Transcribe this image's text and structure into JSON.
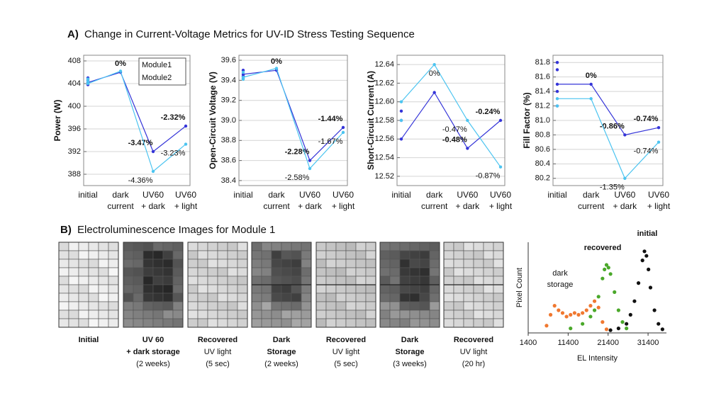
{
  "section_a": {
    "label": "A)",
    "title": "Change in Current-Voltage Metrics for UV-ID Stress Testing Sequence"
  },
  "section_b": {
    "label": "B)",
    "title": "Electroluminescence Images for Module 1"
  },
  "images": [
    {
      "title": [
        "Initial"
      ],
      "detail": []
    },
    {
      "title": [
        "UV 60",
        "+ dark storage"
      ],
      "detail": [
        "(2 weeks)"
      ]
    },
    {
      "title": [
        "Recovered"
      ],
      "detail": [
        "UV light",
        "(5 sec)"
      ]
    },
    {
      "title": [
        "Dark",
        "Storage"
      ],
      "detail": [
        "(2 weeks)"
      ]
    },
    {
      "title": [
        "Recovered"
      ],
      "detail": [
        "UV light",
        "(5 sec)"
      ]
    },
    {
      "title": [
        "Dark",
        "Storage"
      ],
      "detail": [
        "(3 weeks)"
      ]
    },
    {
      "title": [
        "Recovered"
      ],
      "detail": [
        "UV light",
        "(20 hr)"
      ]
    }
  ],
  "chart_data": [
    {
      "type": "line",
      "y_label": "Power (W)",
      "legend": true,
      "grid": true,
      "categories": [
        [
          "initial"
        ],
        [
          "dark",
          "current"
        ],
        [
          "UV60",
          "+ dark"
        ],
        [
          "UV60",
          "+ light"
        ]
      ],
      "ylim": [
        386,
        409
      ],
      "yticks": [
        388,
        392,
        396,
        400,
        404,
        408
      ],
      "series": [
        {
          "name": "Module1",
          "color": "#3434d8",
          "values": [
            404.2,
            406,
            392,
            396.5
          ],
          "initial_values": [
            405,
            404.6,
            403.8
          ],
          "change_labels": [
            null,
            "0%",
            "-3.47%",
            "-2.32%"
          ]
        },
        {
          "name": "Module2",
          "color": "#4cc4f0",
          "values": [
            404.0,
            406.2,
            388.5,
            393.3
          ],
          "initial_values": [
            404.8,
            404.4
          ],
          "change_labels": [
            null,
            null,
            "-4.36%",
            "-3.23%"
          ]
        }
      ]
    },
    {
      "type": "line",
      "y_label": "Open-Circuit Voltage (V)",
      "legend": false,
      "grid": true,
      "categories": [
        [
          "initial"
        ],
        [
          "dark",
          "current"
        ],
        [
          "UV60",
          "+ dark"
        ],
        [
          "UV60",
          "+ light"
        ]
      ],
      "ylim": [
        38.35,
        39.65
      ],
      "yticks": [
        38.4,
        38.6,
        38.8,
        {
          "value": 39,
          "label": "39.0"
        },
        39.2,
        39.4,
        39.6
      ],
      "series": [
        {
          "name": "Module1",
          "color": "#3434d8",
          "values": [
            39.46,
            39.5,
            38.6,
            38.93
          ],
          "initial_values": [
            39.5,
            39.44,
            39.42
          ],
          "change_labels": [
            null,
            "0%",
            "-2.28%",
            "-1.44%"
          ]
        },
        {
          "name": "Module2",
          "color": "#4cc4f0",
          "values": [
            39.43,
            39.52,
            38.52,
            38.88
          ],
          "initial_values": [
            39.48,
            39.41
          ],
          "change_labels": [
            null,
            null,
            "-2.58%",
            "-1.67%"
          ]
        }
      ]
    },
    {
      "type": "line",
      "y_label": "Short-Circuit Current (A)",
      "legend": false,
      "grid": true,
      "categories": [
        [
          "initial"
        ],
        [
          "dark",
          "current"
        ],
        [
          "UV60",
          "+ dark"
        ],
        [
          "UV60",
          "+ light"
        ]
      ],
      "ylim": [
        12.51,
        12.65
      ],
      "yticks": [
        12.52,
        12.54,
        12.56,
        12.58,
        {
          "value": 12.6,
          "label": "12.60"
        },
        12.62,
        12.64
      ],
      "series": [
        {
          "name": "Module1",
          "color": "#3434d8",
          "values": [
            12.56,
            12.61,
            12.55,
            12.58
          ],
          "initial_values": [
            12.59,
            12.58
          ],
          "change_labels": [
            null,
            null,
            "-0.48%",
            "-0.24%"
          ]
        },
        {
          "name": "Module2",
          "color": "#4cc4f0",
          "values": [
            12.6,
            12.64,
            12.58,
            12.53
          ],
          "initial_values": [
            12.58
          ],
          "change_labels": [
            null,
            "0%",
            "-0.47%",
            "-0.87%"
          ]
        }
      ]
    },
    {
      "type": "line",
      "y_label": "Fill Factor (%)",
      "legend": false,
      "grid": true,
      "categories": [
        [
          "initial"
        ],
        [
          "dark",
          "current"
        ],
        [
          "UV60",
          "+ dark"
        ],
        [
          "UV60",
          "+ light"
        ]
      ],
      "ylim": [
        80.1,
        81.9
      ],
      "yticks": [
        80.2,
        80.4,
        80.6,
        80.8,
        {
          "value": 81,
          "label": "81.0"
        },
        81.2,
        81.4,
        81.6,
        81.8
      ],
      "series": [
        {
          "name": "Module1",
          "color": "#3434d8",
          "values": [
            81.5,
            81.5,
            80.8,
            80.9
          ],
          "initial_values": [
            81.8,
            81.7,
            81.4,
            81.2
          ],
          "change_labels": [
            null,
            "0%",
            "-0.86%",
            "-0.74%"
          ]
        },
        {
          "name": "Module2",
          "color": "#4cc4f0",
          "values": [
            81.3,
            81.3,
            80.2,
            80.7
          ],
          "initial_values": [
            81.2
          ],
          "change_labels": [
            null,
            null,
            "-1.35%",
            "-0.74%"
          ]
        }
      ]
    },
    {
      "type": "scatter",
      "x_label": "EL Intensity",
      "y_label": "Pixel Count",
      "xlim": [
        1400,
        36000
      ],
      "xticks": [
        1400,
        11400,
        21400,
        31400
      ],
      "ylim": [
        0,
        100
      ],
      "series": [
        {
          "name": "initial",
          "color": "#111111",
          "x": [
            22000,
            24000,
            26000,
            27000,
            28000,
            29000,
            30000,
            30500,
            31000,
            31500,
            32000,
            33000,
            34000,
            35000
          ],
          "values": [
            3,
            5,
            10,
            20,
            35,
            55,
            80,
            90,
            85,
            70,
            50,
            25,
            10,
            4
          ]
        },
        {
          "name": "recovered",
          "color": "#4aa82a",
          "x": [
            12000,
            15000,
            17000,
            18000,
            19000,
            20000,
            20500,
            21000,
            21500,
            22000,
            23000,
            24000,
            25000,
            26000
          ],
          "values": [
            5,
            10,
            18,
            25,
            40,
            60,
            70,
            75,
            72,
            65,
            45,
            25,
            12,
            5
          ]
        },
        {
          "name": "dark storage",
          "color": "#f07830",
          "x": [
            6000,
            7000,
            8000,
            9000,
            10000,
            11000,
            12000,
            13000,
            14000,
            15000,
            16000,
            17000,
            18000,
            19000,
            20000,
            21000
          ],
          "values": [
            8,
            20,
            30,
            25,
            22,
            18,
            20,
            22,
            20,
            22,
            25,
            30,
            35,
            28,
            12,
            4
          ]
        }
      ]
    }
  ]
}
